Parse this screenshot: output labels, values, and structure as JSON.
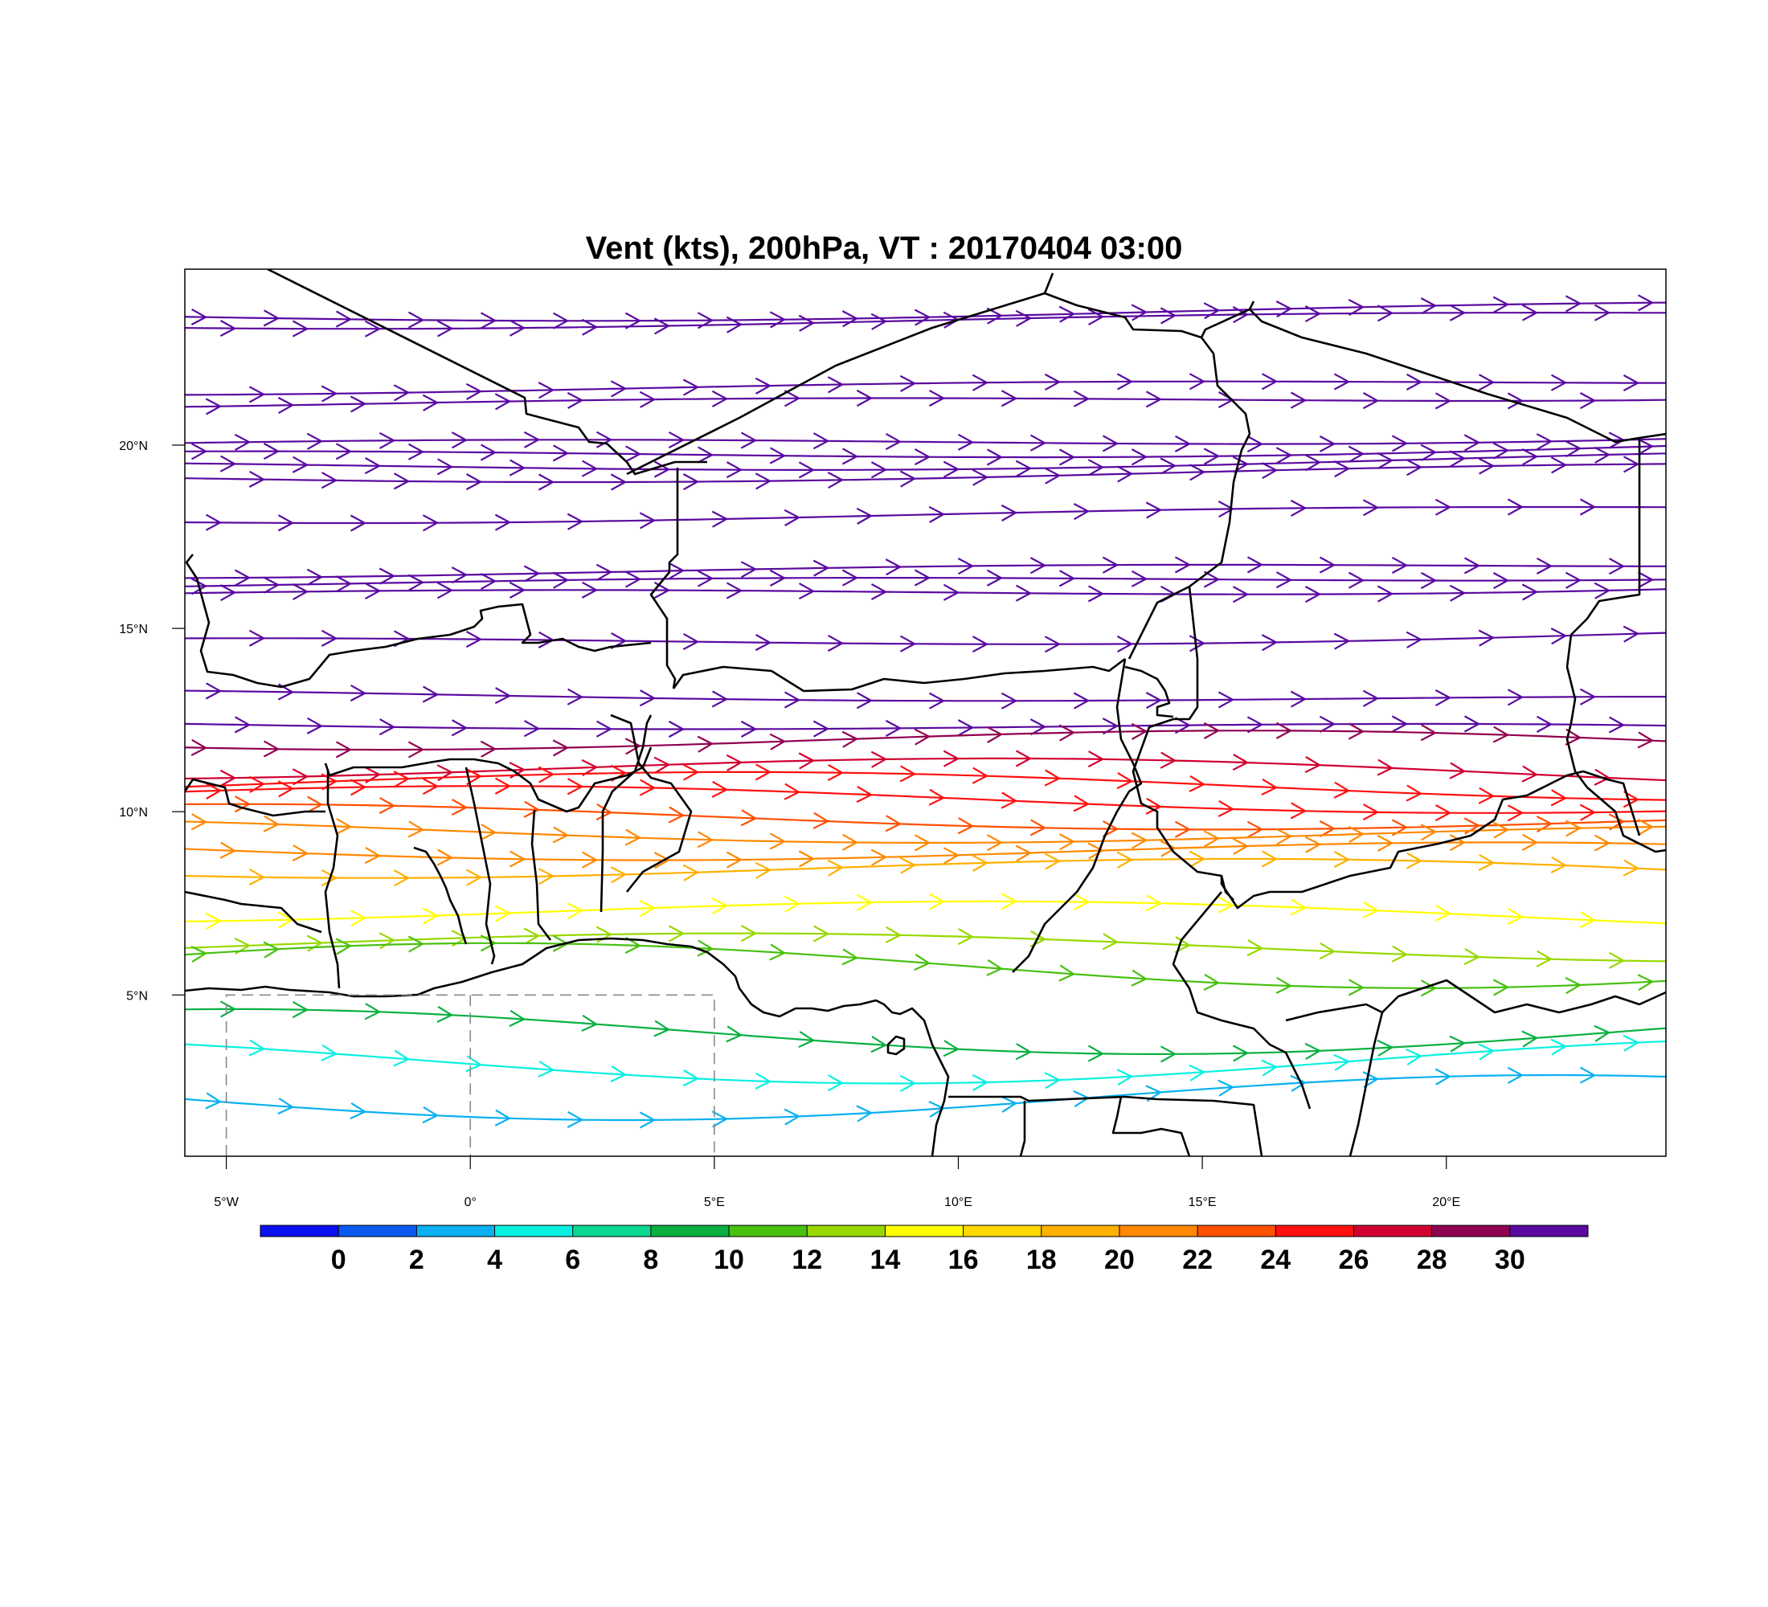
{
  "title": "Vent (kts), 200hPa, VT : 20170404  03:00",
  "map": {
    "lon_range": [
      -5.85,
      24.5
    ],
    "lat_range": [
      0.6,
      24.8
    ],
    "x_ticks": [
      {
        "lon": -5,
        "label": "5°W"
      },
      {
        "lon": 0,
        "label": "0°"
      },
      {
        "lon": 5,
        "label": "5°E"
      },
      {
        "lon": 10,
        "label": "10°E"
      },
      {
        "lon": 15,
        "label": "15°E"
      },
      {
        "lon": 20,
        "label": "20°E"
      }
    ],
    "y_ticks": [
      {
        "lat": 5,
        "label": "5°N"
      },
      {
        "lat": 10,
        "label": "10°N"
      },
      {
        "lat": 15,
        "label": "15°N"
      },
      {
        "lat": 20,
        "label": "20°N"
      }
    ],
    "dashed_box": {
      "lon": [
        -5,
        5
      ],
      "lat": [
        0.6,
        5
      ]
    }
  },
  "colorbar": {
    "colors": [
      "#0a10f0",
      "#0a5af0",
      "#0ab0f0",
      "#0af0e0",
      "#0ad890",
      "#0ab040",
      "#48c010",
      "#98d800",
      "#ffff00",
      "#ffd800",
      "#ffb000",
      "#ff8800",
      "#ff5000",
      "#ff1010",
      "#d00030",
      "#900050",
      "#5a0aa0"
    ],
    "labels": [
      "0",
      "2",
      "4",
      "6",
      "8",
      "10",
      "12",
      "14",
      "16",
      "18",
      "20",
      "22",
      "24",
      "26",
      "28",
      "30"
    ]
  },
  "chart_data": {
    "type": "streamline",
    "variable": "Vent (kts)",
    "level": "200hPa",
    "valid_time": "20170404  03:00",
    "streamlines": [
      {
        "lat": 23.5,
        "speed": 32
      },
      {
        "lat": 23.3,
        "speed": 32
      },
      {
        "lat": 21.5,
        "speed": 32
      },
      {
        "lat": 21.1,
        "speed": 32
      },
      {
        "lat": 20.0,
        "speed": 32
      },
      {
        "lat": 19.7,
        "speed": 32
      },
      {
        "lat": 19.4,
        "speed": 32
      },
      {
        "lat": 19.1,
        "speed": 32
      },
      {
        "lat": 18.0,
        "speed": 32
      },
      {
        "lat": 16.5,
        "speed": 32
      },
      {
        "lat": 16.2,
        "speed": 32
      },
      {
        "lat": 15.9,
        "speed": 32
      },
      {
        "lat": 14.6,
        "speed": 32
      },
      {
        "lat": 13.2,
        "speed": 32
      },
      {
        "lat": 12.4,
        "speed": 30
      },
      {
        "lat": 12.0,
        "speed": 29
      },
      {
        "lat": 11.2,
        "speed": 26
      },
      {
        "lat": 10.8,
        "speed": 25
      },
      {
        "lat": 10.4,
        "speed": 24
      },
      {
        "lat": 9.9,
        "speed": 22
      },
      {
        "lat": 9.5,
        "speed": 21
      },
      {
        "lat": 9.0,
        "speed": 20
      },
      {
        "lat": 8.5,
        "speed": 19
      },
      {
        "lat": 7.3,
        "speed": 15
      },
      {
        "lat": 6.4,
        "speed": 12
      },
      {
        "lat": 5.8,
        "speed": 10
      },
      {
        "lat": 4.0,
        "speed": 8
      },
      {
        "lat": 3.2,
        "speed": 5
      },
      {
        "lat": 2.2,
        "speed": 2
      }
    ]
  }
}
